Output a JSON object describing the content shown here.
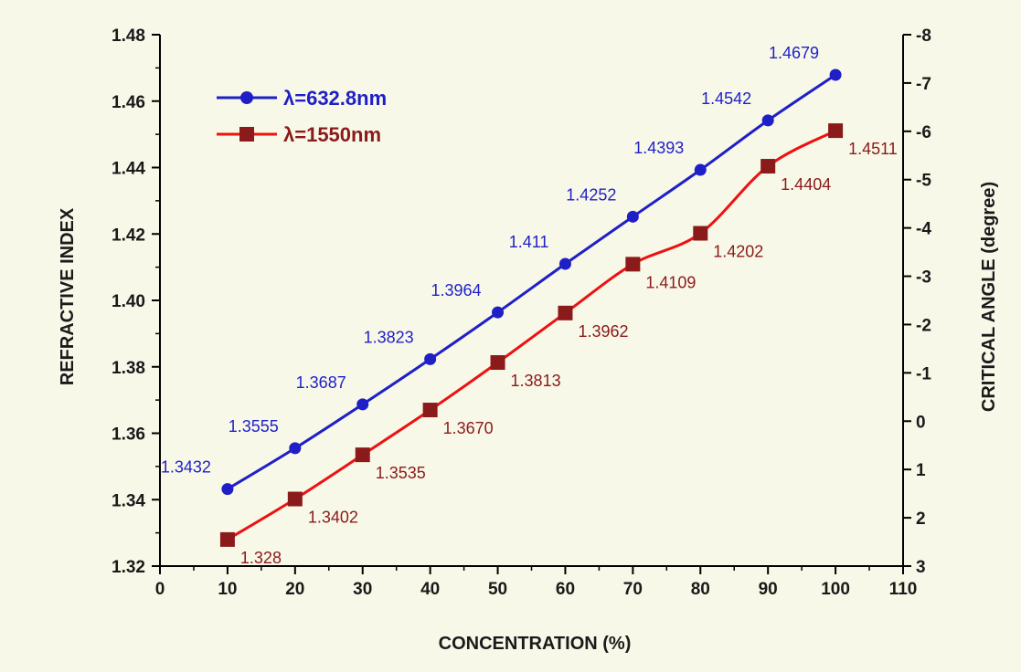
{
  "chart_data": {
    "type": "line",
    "title": "",
    "xlabel": "CONCENTRATION (%)",
    "ylabel": "REFRACTIVE INDEX",
    "y2label": "CRITICAL ANGLE (degree)",
    "xlim": [
      0,
      110
    ],
    "ylim": [
      1.32,
      1.48
    ],
    "y2lim": [
      3,
      -8
    ],
    "x_ticks": [
      0,
      10,
      20,
      30,
      40,
      50,
      60,
      70,
      80,
      90,
      100,
      110
    ],
    "y_ticks": [
      1.32,
      1.34,
      1.36,
      1.38,
      1.4,
      1.42,
      1.44,
      1.46,
      1.48
    ],
    "y_tick_labels": [
      "1.32",
      "1.34",
      "1.36",
      "1.38",
      "1.40",
      "1.42",
      "1.44",
      "1.46",
      "1.48"
    ],
    "y2_ticks": [
      3,
      2,
      1,
      0,
      -1,
      -2,
      -3,
      -4,
      -5,
      -6,
      -7,
      -8
    ],
    "grid": false,
    "legend_position": "top-left",
    "x": [
      10,
      20,
      30,
      40,
      50,
      60,
      70,
      80,
      90,
      100
    ],
    "series": [
      {
        "name": "λ=632.8nm",
        "color": "#1f1fc8",
        "marker": "circle",
        "values": [
          1.3432,
          1.3555,
          1.3687,
          1.3823,
          1.3964,
          1.411,
          1.4252,
          1.4393,
          1.4542,
          1.4679
        ],
        "labels": [
          "1.3432",
          "1.3555",
          "1.3687",
          "1.3823",
          "1.3964",
          "1.411",
          "1.4252",
          "1.4393",
          "1.4542",
          "1.4679"
        ]
      },
      {
        "name": "λ=1550nm",
        "color": "#8b1a1a",
        "line_color": "#ee1111",
        "marker": "square",
        "values": [
          1.328,
          1.3402,
          1.3535,
          1.367,
          1.3813,
          1.3962,
          1.4109,
          1.4202,
          1.4404,
          1.4511
        ],
        "labels": [
          "1.328",
          "1.3402",
          "1.3535",
          "1.3670",
          "1.3813",
          "1.3962",
          "1.4109",
          "1.4202",
          "1.4404",
          "1.4511"
        ]
      }
    ]
  },
  "colors": {
    "background": "#f8f8e8",
    "axis": "#000000",
    "text": "#1a1a1a"
  }
}
